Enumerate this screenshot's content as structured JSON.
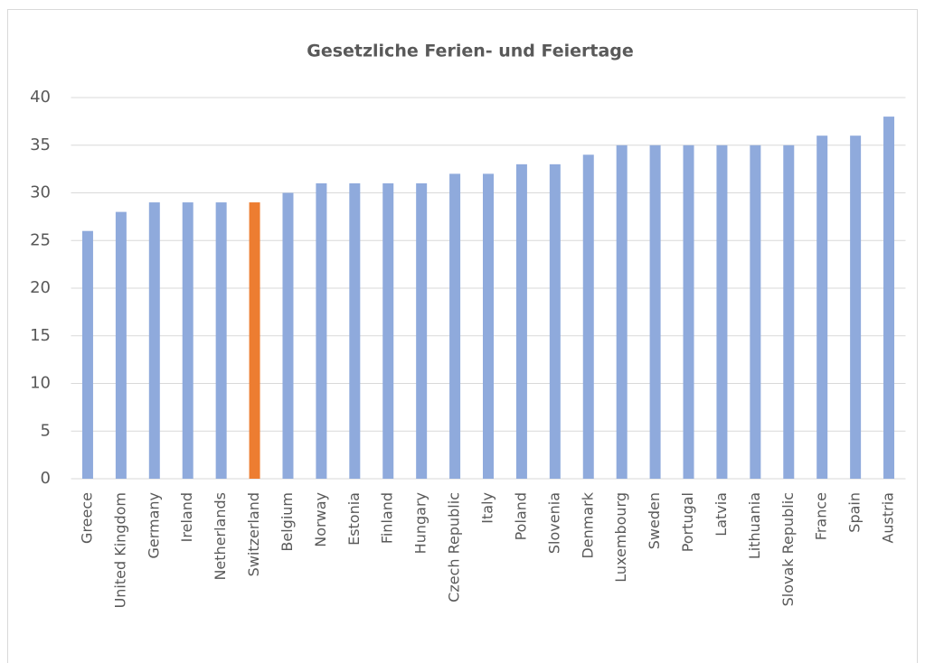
{
  "chart_data": {
    "type": "bar",
    "title": "Gesetzliche Ferien- und Feiertage",
    "categories": [
      "Greece",
      "United Kingdom",
      "Germany",
      "Ireland",
      "Netherlands",
      "Switzerland",
      "Belgium",
      "Norway",
      "Estonia",
      "Finland",
      "Hungary",
      "Czech Republic",
      "Italy",
      "Poland",
      "Slovenia",
      "Denmark",
      "Luxembourg",
      "Sweden",
      "Portugal",
      "Latvia",
      "Lithuania",
      "Slovak Republic",
      "France",
      "Spain",
      "Austria"
    ],
    "values": [
      26,
      28,
      29,
      29,
      29,
      29,
      30,
      31,
      31,
      31,
      31,
      32,
      32,
      33,
      33,
      34,
      35,
      35,
      35,
      35,
      35,
      35,
      36,
      36,
      38
    ],
    "colors": [
      "#8faadc",
      "#8faadc",
      "#8faadc",
      "#8faadc",
      "#8faadc",
      "#ed7d31",
      "#8faadc",
      "#8faadc",
      "#8faadc",
      "#8faadc",
      "#8faadc",
      "#8faadc",
      "#8faadc",
      "#8faadc",
      "#8faadc",
      "#8faadc",
      "#8faadc",
      "#8faadc",
      "#8faadc",
      "#8faadc",
      "#8faadc",
      "#8faadc",
      "#8faadc",
      "#8faadc",
      "#8faadc"
    ],
    "ylim": [
      0,
      40
    ],
    "yticks": [
      0,
      5,
      10,
      15,
      20,
      25,
      30,
      35,
      40
    ],
    "grid": true
  }
}
